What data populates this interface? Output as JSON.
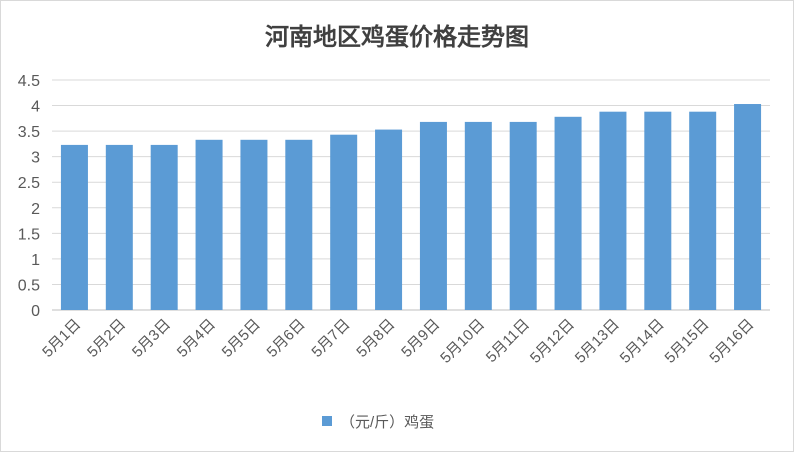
{
  "chart_data": {
    "type": "bar",
    "title": "河南地区鸡蛋价格走势图",
    "categories": [
      "5月1日",
      "5月2日",
      "5月3日",
      "5月4日",
      "5月5日",
      "5月6日",
      "5月7日",
      "5月8日",
      "5月9日",
      "5月10日",
      "5月11日",
      "5月12日",
      "5月13日",
      "5月14日",
      "5月15日",
      "5月16日"
    ],
    "series": [
      {
        "name": "（元/斤）鸡蛋",
        "values": [
          3.23,
          3.23,
          3.23,
          3.33,
          3.33,
          3.33,
          3.43,
          3.53,
          3.68,
          3.68,
          3.68,
          3.78,
          3.88,
          3.88,
          3.88,
          4.03
        ]
      }
    ],
    "xlabel": "",
    "ylabel": "",
    "ylim": [
      0,
      4.5
    ],
    "yticks": [
      "0",
      "0.5",
      "1",
      "1.5",
      "2",
      "2.5",
      "3",
      "3.5",
      "4",
      "4.5"
    ],
    "grid": true,
    "legend": "bottom",
    "colors": {
      "bar": "#5B9BD5",
      "grid": "#D9D9D9",
      "axis": "#BFBFBF",
      "border": "#D9D9D9"
    }
  }
}
